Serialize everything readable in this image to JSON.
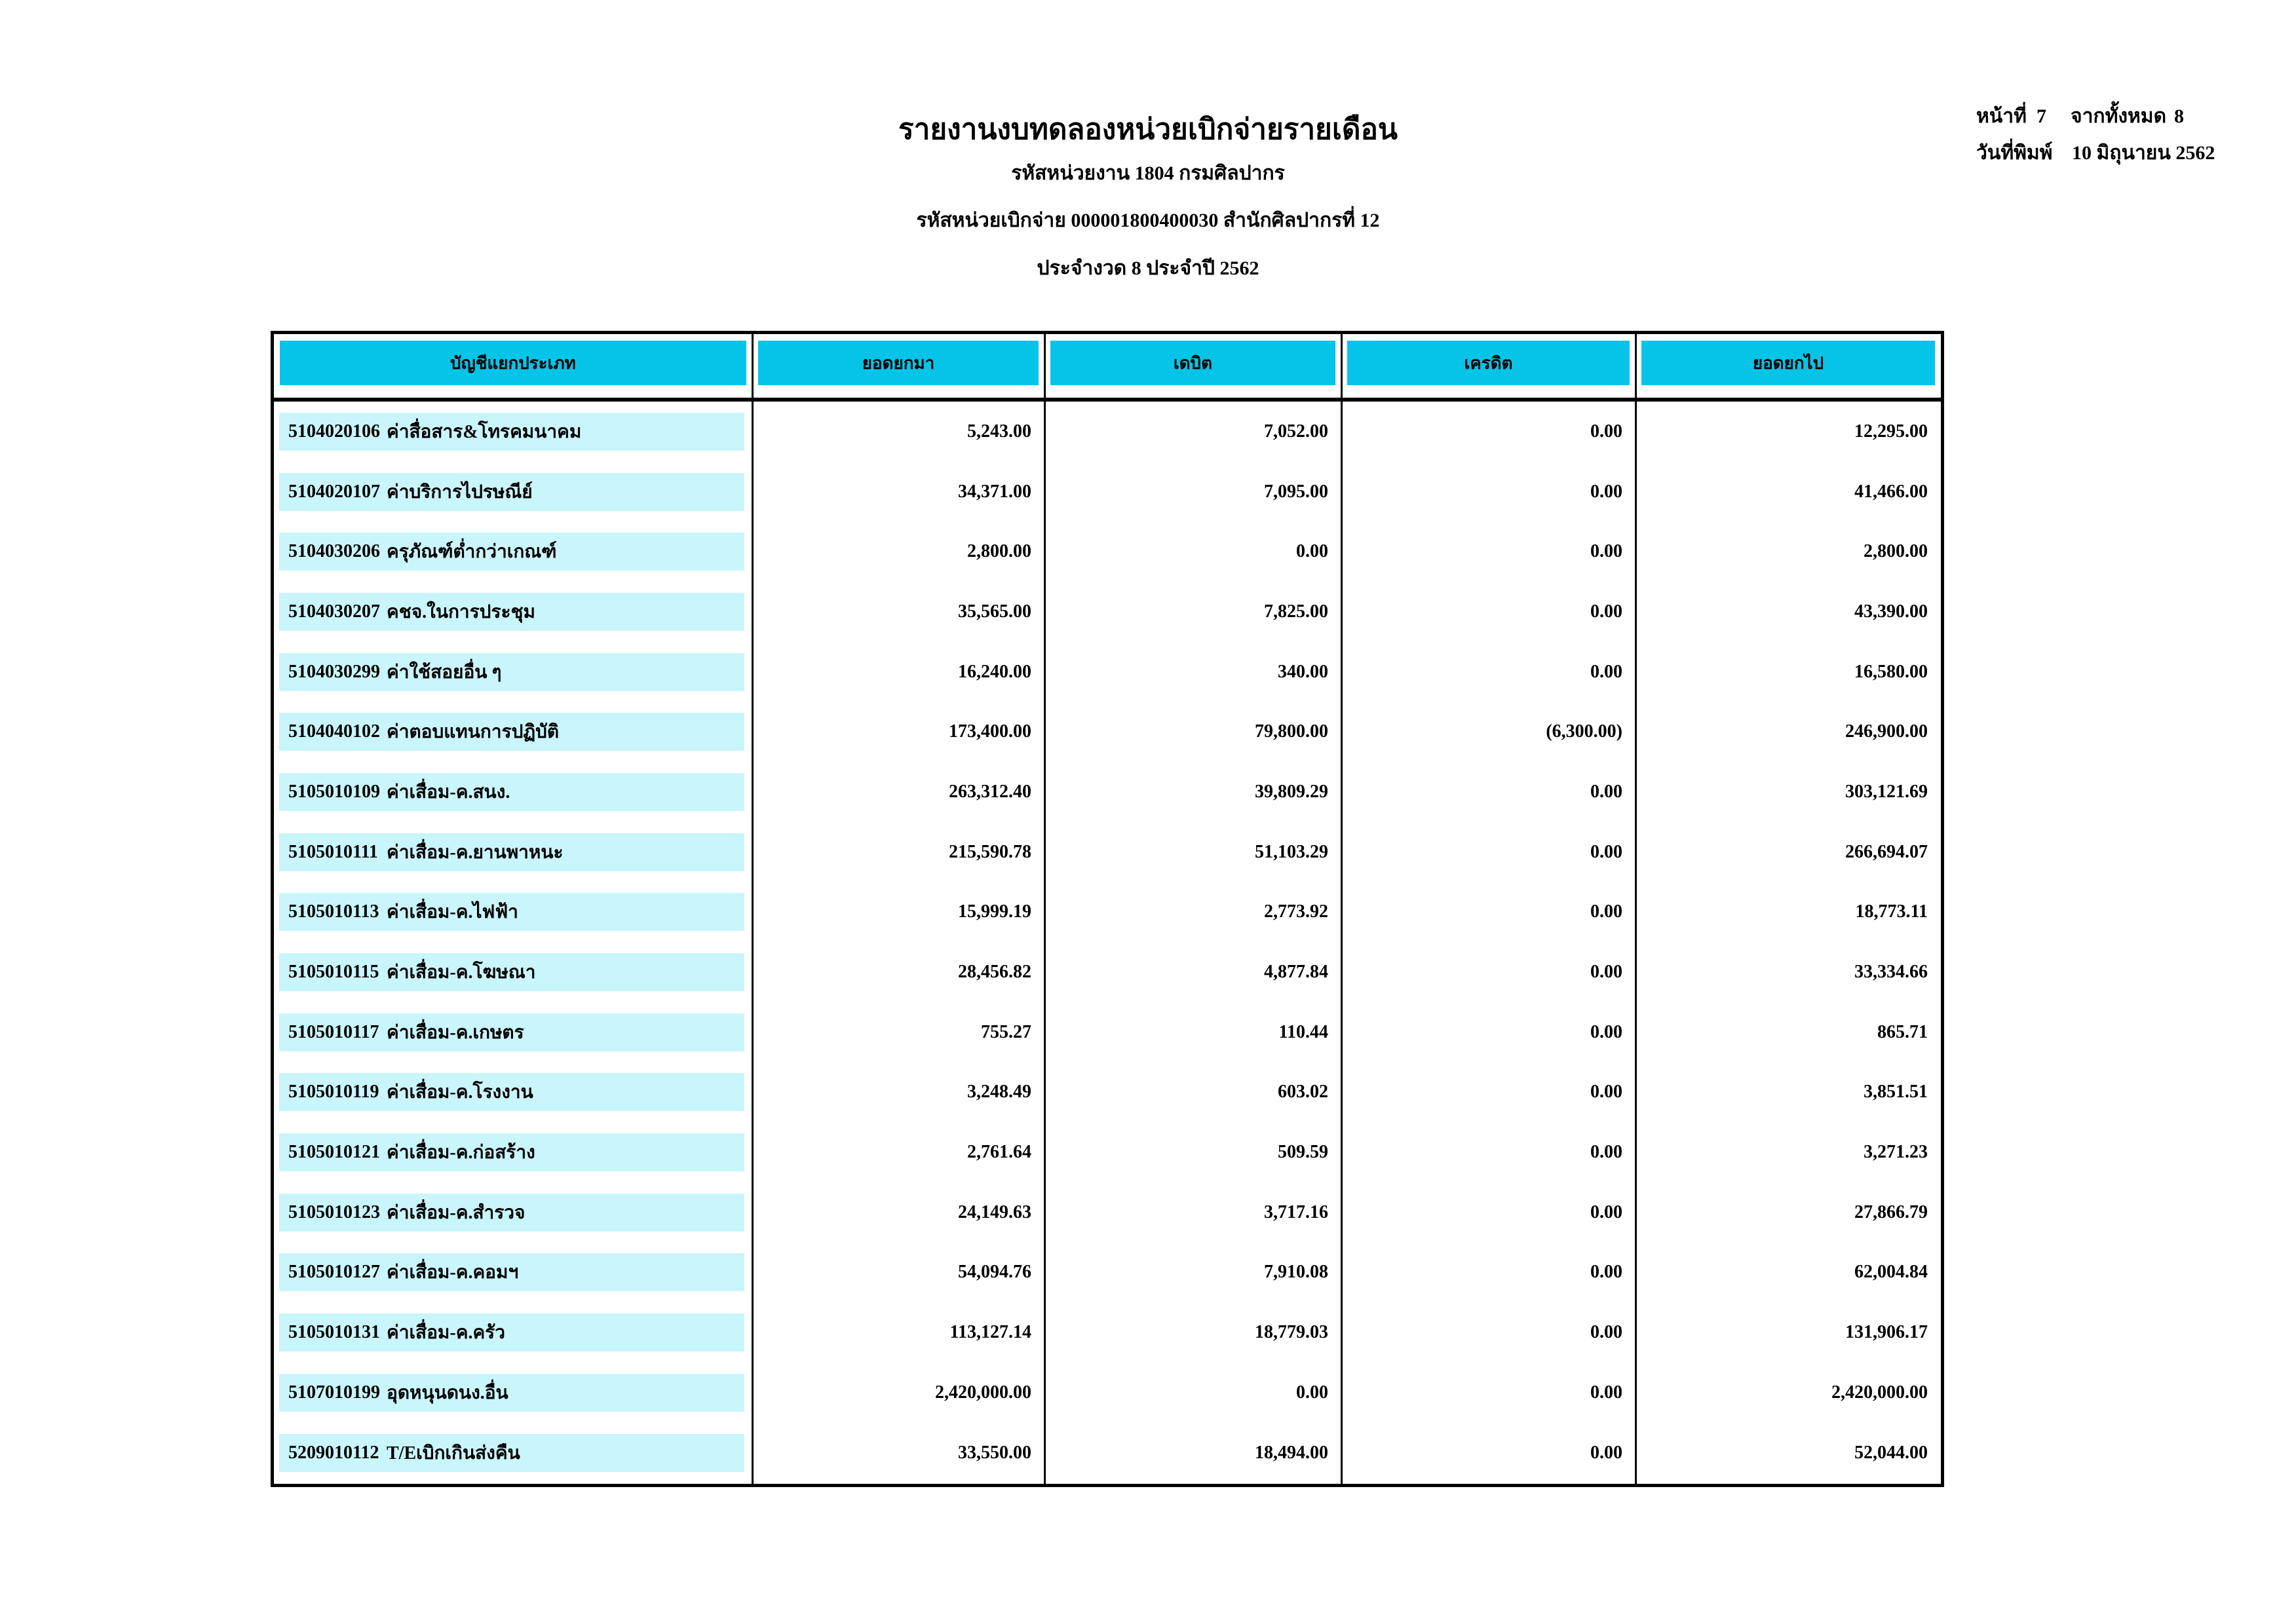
{
  "page": {
    "title": "รายงานงบทดลองหน่วยเบิกจ่ายรายเดือน",
    "subtitle_agency": "รหัสหน่วยงาน 1804 กรมศิลปากร",
    "subtitle_disbursing_unit": "รหัสหน่วยเบิกจ่าย 000001800400030 สำนักศิลปากรที่ 12",
    "subtitle_period": "ประจำงวด 8 ประจำปี 2562",
    "page_label": "หน้าที่",
    "page_number": "7",
    "total_label": "จากทั้งหมด",
    "total_pages": "8",
    "print_date_label": "วันที่พิมพ์",
    "print_date": "10 มิถุนายน 2562"
  },
  "colors": {
    "header_bg": "#05C4E8",
    "row_bg": "#C9F5FC"
  },
  "table": {
    "headers": [
      "บัญชีแยกประเภท",
      "ยอดยกมา",
      "เดบิต",
      "เครดิต",
      "ยอดยกไป"
    ],
    "rows": [
      {
        "code": "5104020106",
        "name": "ค่าสื่อสาร&โทรคมนาคม",
        "carry": "5,243.00",
        "debit": "7,052.00",
        "credit": "0.00",
        "balance": "12,295.00"
      },
      {
        "code": "5104020107",
        "name": "ค่าบริการไปรษณีย์",
        "carry": "34,371.00",
        "debit": "7,095.00",
        "credit": "0.00",
        "balance": "41,466.00"
      },
      {
        "code": "5104030206",
        "name": "ครุภัณฑ์ต่ำกว่าเกณฑ์",
        "carry": "2,800.00",
        "debit": "0.00",
        "credit": "0.00",
        "balance": "2,800.00"
      },
      {
        "code": "5104030207",
        "name": "คชจ.ในการประชุม",
        "carry": "35,565.00",
        "debit": "7,825.00",
        "credit": "0.00",
        "balance": "43,390.00"
      },
      {
        "code": "5104030299",
        "name": "ค่าใช้สอยอื่น ๆ",
        "carry": "16,240.00",
        "debit": "340.00",
        "credit": "0.00",
        "balance": "16,580.00"
      },
      {
        "code": "5104040102",
        "name": "ค่าตอบแทนการปฏิบัติ",
        "carry": "173,400.00",
        "debit": "79,800.00",
        "credit": "(6,300.00)",
        "balance": "246,900.00"
      },
      {
        "code": "5105010109",
        "name": "ค่าเสื่อม-ค.สนง.",
        "carry": "263,312.40",
        "debit": "39,809.29",
        "credit": "0.00",
        "balance": "303,121.69"
      },
      {
        "code": "5105010111",
        "name": "ค่าเสื่อม-ค.ยานพาหนะ",
        "carry": "215,590.78",
        "debit": "51,103.29",
        "credit": "0.00",
        "balance": "266,694.07"
      },
      {
        "code": "5105010113",
        "name": "ค่าเสื่อม-ค.ไฟฟ้า",
        "carry": "15,999.19",
        "debit": "2,773.92",
        "credit": "0.00",
        "balance": "18,773.11"
      },
      {
        "code": "5105010115",
        "name": "ค่าเสื่อม-ค.โฆษณา",
        "carry": "28,456.82",
        "debit": "4,877.84",
        "credit": "0.00",
        "balance": "33,334.66"
      },
      {
        "code": "5105010117",
        "name": "ค่าเสื่อม-ค.เกษตร",
        "carry": "755.27",
        "debit": "110.44",
        "credit": "0.00",
        "balance": "865.71"
      },
      {
        "code": "5105010119",
        "name": "ค่าเสื่อม-ค.โรงงาน",
        "carry": "3,248.49",
        "debit": "603.02",
        "credit": "0.00",
        "balance": "3,851.51"
      },
      {
        "code": "5105010121",
        "name": "ค่าเสื่อม-ค.ก่อสร้าง",
        "carry": "2,761.64",
        "debit": "509.59",
        "credit": "0.00",
        "balance": "3,271.23"
      },
      {
        "code": "5105010123",
        "name": "ค่าเสื่อม-ค.สำรวจ",
        "carry": "24,149.63",
        "debit": "3,717.16",
        "credit": "0.00",
        "balance": "27,866.79"
      },
      {
        "code": "5105010127",
        "name": "ค่าเสื่อม-ค.คอมฯ",
        "carry": "54,094.76",
        "debit": "7,910.08",
        "credit": "0.00",
        "balance": "62,004.84"
      },
      {
        "code": "5105010131",
        "name": "ค่าเสื่อม-ค.ครัว",
        "carry": "113,127.14",
        "debit": "18,779.03",
        "credit": "0.00",
        "balance": "131,906.17"
      },
      {
        "code": "5107010199",
        "name": "อุดหนุนดนง.อื่น",
        "carry": "2,420,000.00",
        "debit": "0.00",
        "credit": "0.00",
        "balance": "2,420,000.00"
      },
      {
        "code": "5209010112",
        "name": "T/Eเบิกเกินส่งคืน",
        "carry": "33,550.00",
        "debit": "18,494.00",
        "credit": "0.00",
        "balance": "52,044.00"
      }
    ]
  }
}
